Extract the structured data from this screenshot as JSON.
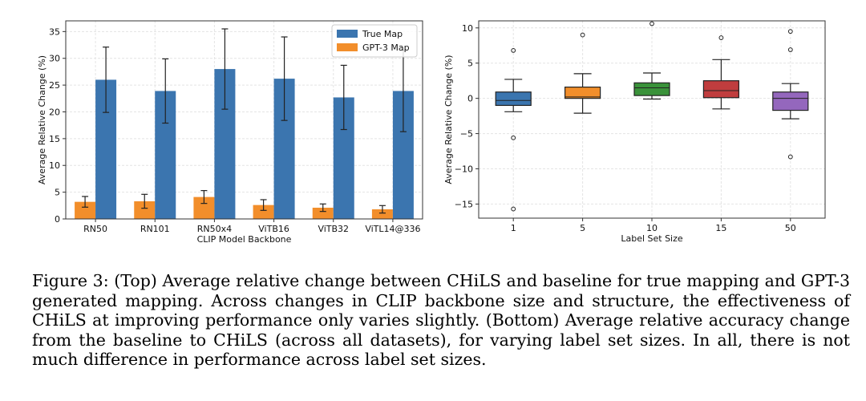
{
  "chart_data": [
    {
      "type": "bar",
      "xlabel": "CLIP Model Backbone",
      "ylabel": "Average Relative Change (%)",
      "ylim": [
        0,
        37
      ],
      "yticks": [
        0,
        5,
        10,
        15,
        20,
        25,
        30,
        35
      ],
      "categories": [
        "RN50",
        "RN101",
        "RN50x4",
        "ViTB16",
        "ViTB32",
        "ViTL14@336"
      ],
      "legend_position": "top-right",
      "series": [
        {
          "name": "GPT-3 Map",
          "color": "#f28e2b",
          "values": [
            3.2,
            3.3,
            4.1,
            2.6,
            2.1,
            1.8
          ],
          "err": [
            1.0,
            1.3,
            1.2,
            1.0,
            0.7,
            0.7
          ]
        },
        {
          "name": "True Map",
          "color": "#3b75af",
          "values": [
            26.0,
            23.9,
            28.0,
            26.2,
            22.7,
            23.9
          ],
          "err": [
            6.1,
            6.0,
            7.5,
            7.8,
            6.0,
            7.6
          ]
        }
      ],
      "legend_order": [
        "True Map",
        "GPT-3 Map"
      ]
    },
    {
      "type": "box",
      "xlabel": "Label Set Size",
      "ylabel": "Average Relative Change (%)",
      "ylim": [
        -17,
        11
      ],
      "yticks": [
        -15,
        -10,
        -5,
        0,
        5,
        10
      ],
      "categories": [
        "1",
        "5",
        "10",
        "15",
        "50"
      ],
      "boxes": [
        {
          "label": "1",
          "color": "#3b75af",
          "whislo": -1.9,
          "q1": -1.0,
          "med": -0.3,
          "q3": 0.9,
          "whishi": 2.7,
          "fliers": [
            6.8,
            -5.6,
            -15.7
          ]
        },
        {
          "label": "5",
          "color": "#f28e2b",
          "whislo": -2.1,
          "q1": 0.0,
          "med": 0.2,
          "q3": 1.6,
          "whishi": 3.5,
          "fliers": [
            9.0
          ]
        },
        {
          "label": "10",
          "color": "#3a923a",
          "whislo": -0.1,
          "q1": 0.4,
          "med": 1.5,
          "q3": 2.2,
          "whishi": 3.6,
          "fliers": [
            10.6
          ]
        },
        {
          "label": "15",
          "color": "#c03d3e",
          "whislo": -1.5,
          "q1": 0.1,
          "med": 1.1,
          "q3": 2.5,
          "whishi": 5.5,
          "fliers": [
            8.6
          ]
        },
        {
          "label": "50",
          "color": "#9467bd",
          "whislo": -2.9,
          "q1": -1.7,
          "med": 0.0,
          "q3": 0.9,
          "whishi": 2.1,
          "fliers": [
            9.5,
            6.9,
            -8.3
          ]
        }
      ]
    }
  ],
  "caption": "Figure 3: (Top) Average relative change between CHiLS and baseline for true mapping and GPT-3 generated mapping. Across changes in CLIP backbone size and structure, the effectiveness of CHiLS at improving performance only varies slightly. (Bottom) Average relative accuracy change from the baseline to CHiLS (across all datasets), for varying label set sizes. In all, there is not much difference in performance across label set sizes."
}
